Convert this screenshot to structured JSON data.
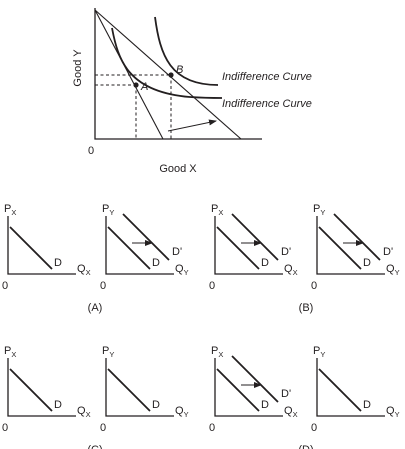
{
  "main_graph": {
    "y_axis_label": "Good Y",
    "x_axis_label": "Good X",
    "origin_label": "0",
    "point_a_label": "A",
    "point_b_label": "B",
    "upper_curve_label": "Indifference Curve",
    "lower_curve_label": "Indifference Curve"
  },
  "panel_labels": {
    "px_letter": "P",
    "px_sub": "X",
    "py_letter": "P",
    "py_sub": "Y",
    "qx_letter": "Q",
    "qx_sub": "X",
    "qy_letter": "Q",
    "qy_sub": "Y",
    "origin": "0",
    "demand": "D",
    "shifted_demand": "D'"
  },
  "options": [
    {
      "label": "(A)",
      "x_market_shift": false,
      "y_market_shift": true
    },
    {
      "label": "(B)",
      "x_market_shift": true,
      "y_market_shift": true
    },
    {
      "label": "(C)",
      "x_market_shift": false,
      "y_market_shift": false
    },
    {
      "label": "(D)",
      "x_market_shift": true,
      "y_market_shift": false
    }
  ]
}
